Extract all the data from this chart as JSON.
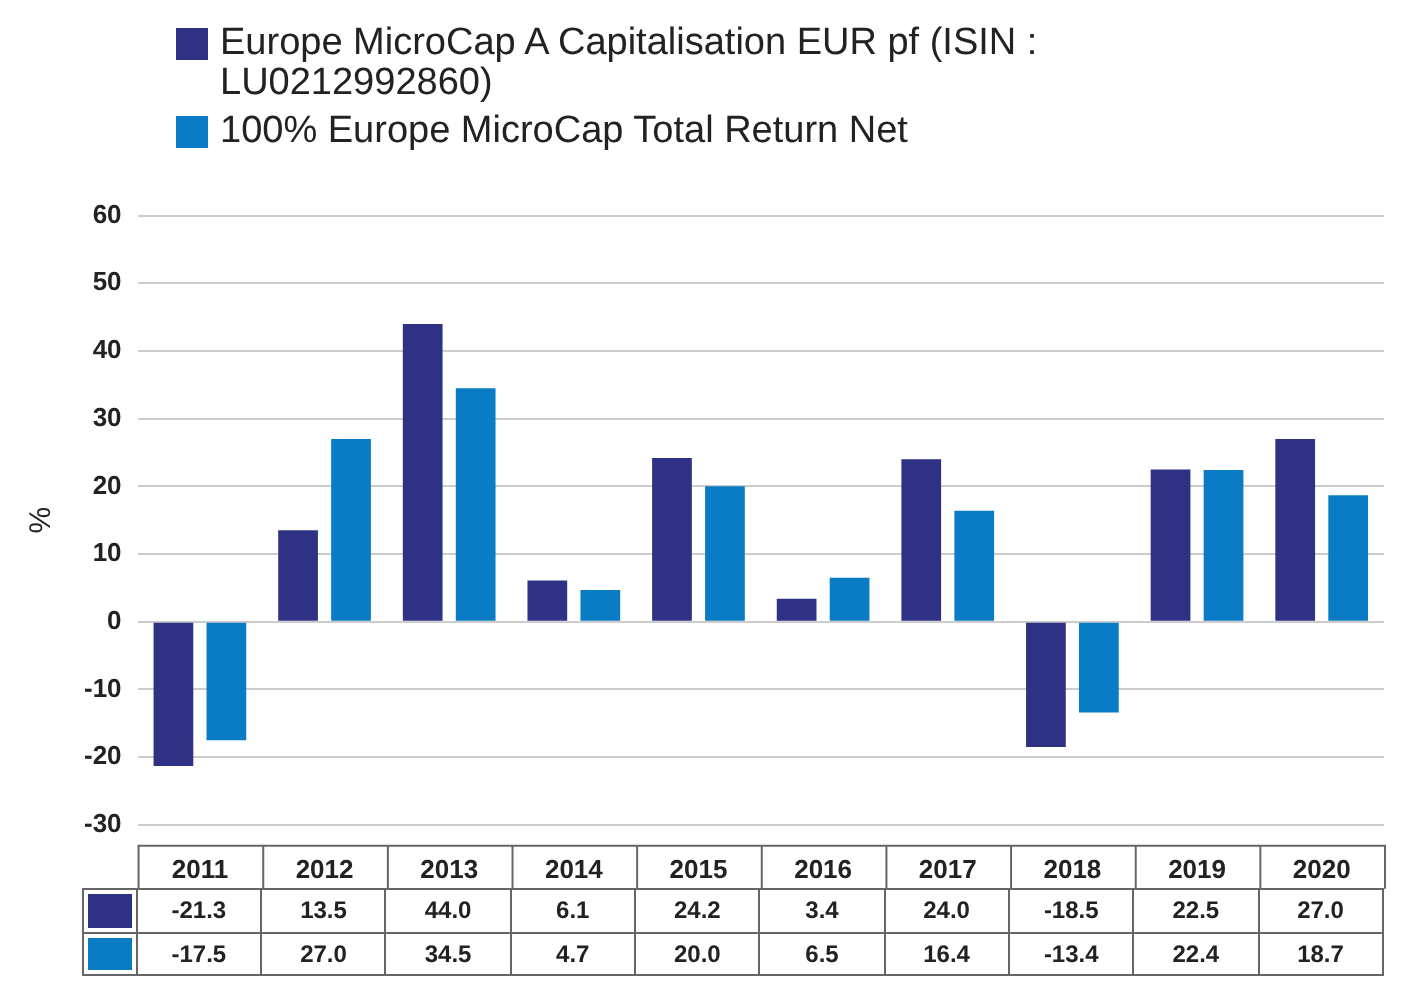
{
  "chart_data": {
    "type": "bar",
    "ylabel": "%",
    "categories": [
      "2011",
      "2012",
      "2013",
      "2014",
      "2015",
      "2016",
      "2017",
      "2018",
      "2019",
      "2020"
    ],
    "series": [
      {
        "name": "Europe MicroCap A Capitalisation EUR pf (ISIN : LU0212992860)",
        "color": "#2e3184",
        "values": [
          -21.3,
          13.5,
          44.0,
          6.1,
          24.2,
          3.4,
          24.0,
          -18.5,
          22.5,
          27.0
        ],
        "value_labels": [
          "-21.3",
          "13.5",
          "44.0",
          "6.1",
          "24.2",
          "3.4",
          "24.0",
          "-18.5",
          "22.5",
          "27.0"
        ]
      },
      {
        "name": "100% Europe MicroCap Total Return Net",
        "color": "#0a7cc5",
        "values": [
          -17.5,
          27.0,
          34.5,
          4.7,
          20.0,
          6.5,
          16.4,
          -13.4,
          22.4,
          18.7
        ],
        "value_labels": [
          "-17.5",
          "27.0",
          "34.5",
          "4.7",
          "20.0",
          "6.5",
          "16.4",
          "-13.4",
          "22.4",
          "18.7"
        ]
      }
    ],
    "ylim": [
      -30,
      60
    ],
    "yticks": [
      -30,
      -20,
      -10,
      0,
      10,
      20,
      30,
      40,
      50,
      60
    ],
    "grid": "y",
    "legend": "top left"
  }
}
